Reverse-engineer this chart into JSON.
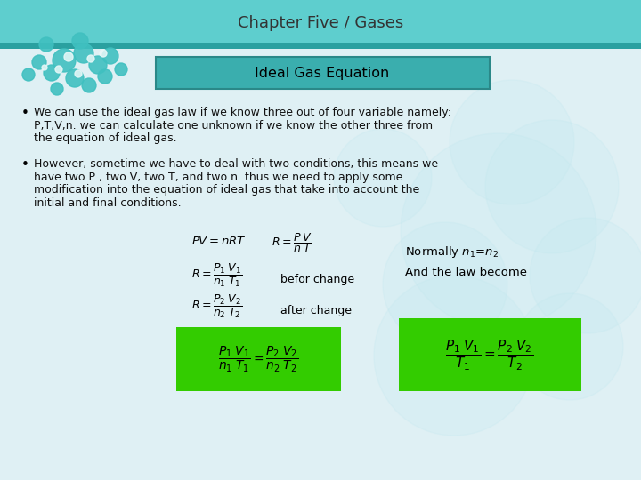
{
  "title": "Chapter Five / Gases",
  "subtitle": "Ideal Gas Equation",
  "bullet1_line1": "We can use the ideal gas law if we know three out of four variable namely:",
  "bullet1_line2": "P,T,V,n. we can calculate one unknown if we know the other three from",
  "bullet1_line3": "the equation of ideal gas.",
  "bullet2_line1": "However, sometime we have to deal with two conditions, this means we",
  "bullet2_line2": "have two P , two V, two T, and two n. thus we need to apply some",
  "bullet2_line3": "modification into the equation of ideal gas that take into account the",
  "bullet2_line4": "initial and final conditions.",
  "header_bg": "#5ecece",
  "header_line": "#2aa0a0",
  "slide_bg": "#dff0f4",
  "subtitle_bg": "#3aaeae",
  "subtitle_border": "#2a8888",
  "green_box": "#33cc00",
  "body_text": "#111111",
  "title_color": "#333333",
  "mol_color": "#40c0c0",
  "mol_white": "#e8f8f8",
  "cloud_color": "#c0e8f0"
}
